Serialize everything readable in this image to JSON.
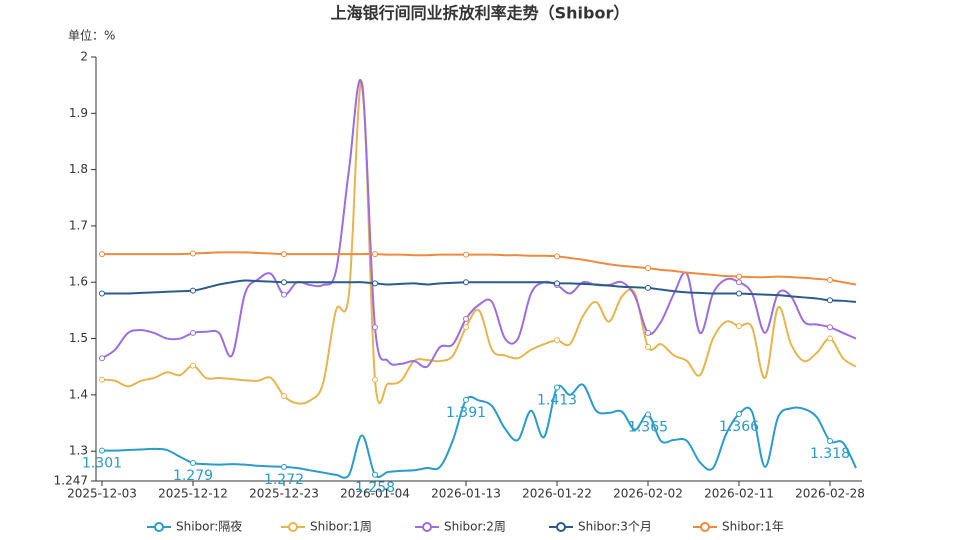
{
  "chart_data": {
    "type": "line",
    "title": "上海银行间同业拆放利率走势（Shibor）",
    "y_label": "单位：%",
    "categories": [
      "2025-12-03",
      null,
      null,
      null,
      null,
      null,
      null,
      "2025-12-12",
      null,
      null,
      null,
      null,
      null,
      null,
      "2025-12-23",
      null,
      null,
      null,
      null,
      null,
      null,
      "2026-01-04",
      null,
      null,
      null,
      null,
      null,
      null,
      "2026-01-13",
      null,
      null,
      null,
      null,
      null,
      null,
      "2026-01-22",
      null,
      null,
      null,
      null,
      null,
      null,
      "2026-02-02",
      null,
      null,
      null,
      null,
      null,
      null,
      "2026-02-11",
      null,
      null,
      null,
      null,
      null,
      null,
      "2026-02-28",
      null,
      null
    ],
    "ylim": [
      1.247,
      2
    ],
    "yticks": [
      1.247,
      1.3,
      1.4,
      1.5,
      1.6,
      1.7,
      1.8,
      1.9,
      2
    ],
    "grid": false,
    "legend": "bottom",
    "series": [
      {
        "name": "Shibor:隔夜",
        "color": "#2a9bcb",
        "values": [
          1.301,
          1.301,
          1.302,
          1.303,
          1.304,
          1.302,
          1.29,
          1.279,
          1.277,
          1.276,
          1.277,
          1.276,
          1.274,
          1.273,
          1.272,
          1.27,
          1.266,
          1.262,
          1.258,
          1.258,
          1.328,
          1.258,
          1.263,
          1.265,
          1.266,
          1.27,
          1.272,
          1.32,
          1.391,
          1.39,
          1.38,
          1.34,
          1.32,
          1.372,
          1.325,
          1.413,
          1.4,
          1.418,
          1.372,
          1.368,
          1.37,
          1.338,
          1.365,
          1.318,
          1.32,
          1.318,
          1.28,
          1.27,
          1.33,
          1.366,
          1.37,
          1.272,
          1.36,
          1.376,
          1.375,
          1.36,
          1.318,
          1.315,
          1.27
        ]
      },
      {
        "name": "Shibor:1周",
        "color": "#e5b54f",
        "values": [
          1.427,
          1.425,
          1.415,
          1.425,
          1.43,
          1.44,
          1.435,
          1.452,
          1.43,
          1.43,
          1.428,
          1.426,
          1.425,
          1.43,
          1.398,
          1.385,
          1.39,
          1.42,
          1.55,
          1.58,
          1.955,
          1.427,
          1.42,
          1.425,
          1.46,
          1.462,
          1.46,
          1.47,
          1.52,
          1.55,
          1.48,
          1.47,
          1.465,
          1.48,
          1.49,
          1.497,
          1.49,
          1.54,
          1.565,
          1.53,
          1.575,
          1.58,
          1.485,
          1.49,
          1.47,
          1.46,
          1.435,
          1.5,
          1.53,
          1.522,
          1.52,
          1.43,
          1.555,
          1.49,
          1.46,
          1.475,
          1.5,
          1.465,
          1.45
        ]
      },
      {
        "name": "Shibor:2周",
        "color": "#9b6de0",
        "values": [
          1.465,
          1.48,
          1.51,
          1.515,
          1.51,
          1.5,
          1.5,
          1.51,
          1.512,
          1.51,
          1.47,
          1.58,
          1.605,
          1.615,
          1.578,
          1.6,
          1.595,
          1.595,
          1.62,
          1.8,
          1.95,
          1.52,
          1.46,
          1.455,
          1.46,
          1.45,
          1.485,
          1.49,
          1.535,
          1.56,
          1.565,
          1.5,
          1.5,
          1.58,
          1.6,
          1.595,
          1.58,
          1.6,
          1.595,
          1.595,
          1.6,
          1.575,
          1.51,
          1.53,
          1.58,
          1.615,
          1.51,
          1.58,
          1.605,
          1.6,
          1.58,
          1.51,
          1.58,
          1.575,
          1.53,
          1.525,
          1.52,
          1.51,
          1.5
        ]
      },
      {
        "name": "Shibor:3个月",
        "color": "#2b5b8c",
        "values": [
          1.58,
          1.58,
          1.58,
          1.581,
          1.582,
          1.583,
          1.584,
          1.585,
          1.59,
          1.596,
          1.6,
          1.603,
          1.602,
          1.601,
          1.6,
          1.6,
          1.6,
          1.6,
          1.6,
          1.6,
          1.6,
          1.598,
          1.596,
          1.597,
          1.598,
          1.596,
          1.598,
          1.599,
          1.6,
          1.6,
          1.6,
          1.6,
          1.6,
          1.6,
          1.6,
          1.598,
          1.598,
          1.597,
          1.596,
          1.594,
          1.592,
          1.591,
          1.59,
          1.587,
          1.584,
          1.582,
          1.581,
          1.58,
          1.58,
          1.58,
          1.579,
          1.578,
          1.577,
          1.575,
          1.573,
          1.571,
          1.568,
          1.567,
          1.565
        ]
      },
      {
        "name": "Shibor:1年",
        "color": "#ee8a3c",
        "values": [
          1.65,
          1.65,
          1.65,
          1.65,
          1.65,
          1.65,
          1.65,
          1.651,
          1.652,
          1.653,
          1.653,
          1.653,
          1.652,
          1.651,
          1.65,
          1.65,
          1.65,
          1.65,
          1.65,
          1.65,
          1.65,
          1.65,
          1.649,
          1.649,
          1.648,
          1.648,
          1.649,
          1.649,
          1.649,
          1.649,
          1.649,
          1.648,
          1.648,
          1.647,
          1.647,
          1.646,
          1.643,
          1.64,
          1.636,
          1.632,
          1.629,
          1.627,
          1.625,
          1.622,
          1.62,
          1.617,
          1.615,
          1.613,
          1.611,
          1.61,
          1.609,
          1.609,
          1.61,
          1.609,
          1.608,
          1.606,
          1.604,
          1.6,
          1.596
        ]
      }
    ]
  }
}
